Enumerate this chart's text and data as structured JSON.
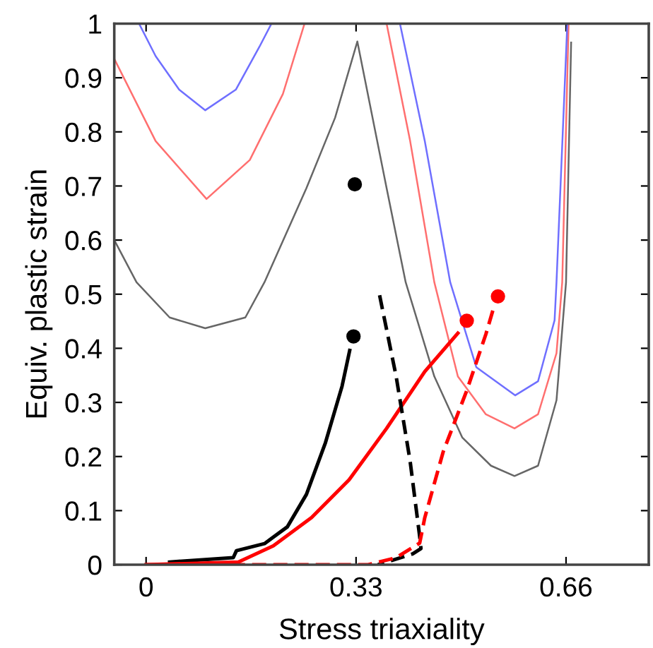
{
  "chart_data": {
    "type": "line",
    "xlabel": "Stress triaxiality",
    "ylabel": "Equiv. plastic strain",
    "xlim": [
      -0.05,
      0.79
    ],
    "ylim": [
      0,
      1
    ],
    "xticks": [
      0,
      0.33,
      0.66
    ],
    "yticks": [
      0,
      0.1,
      0.2,
      0.3,
      0.4,
      0.5,
      0.6,
      0.7,
      0.8,
      0.9,
      1
    ],
    "grid": false,
    "legend": false,
    "marker": "none",
    "series": [
      {
        "color": "#6f6fff",
        "x": [
          -0.011,
          0.015,
          0.052,
          0.093,
          0.141,
          0.178,
          0.197
        ],
        "values": [
          1,
          0.94,
          0.878,
          0.84,
          0.878,
          0.957,
          1
        ]
      },
      {
        "color": "#ff6f6f",
        "x": [
          -0.05,
          0.015,
          0.095,
          0.163,
          0.215,
          0.249
        ],
        "values": [
          0.935,
          0.783,
          0.676,
          0.748,
          0.87,
          1
        ]
      },
      {
        "color": "#666666",
        "x": [
          -0.05,
          -0.015,
          0.037,
          0.093,
          0.156,
          0.186,
          0.252,
          0.297,
          0.332,
          0.378,
          0.408,
          0.453,
          0.497,
          0.542,
          0.579,
          0.616,
          0.645,
          0.66,
          0.668
        ],
        "values": [
          0.6,
          0.522,
          0.457,
          0.437,
          0.457,
          0.522,
          0.696,
          0.826,
          0.967,
          0.696,
          0.522,
          0.348,
          0.235,
          0.183,
          0.164,
          0.183,
          0.304,
          0.522,
          0.965
        ]
      },
      {
        "color": "#ff6f6f",
        "x": [
          0.378,
          0.415,
          0.453,
          0.49,
          0.534,
          0.579,
          0.616,
          0.645,
          0.654,
          0.664
        ],
        "values": [
          1,
          0.783,
          0.522,
          0.348,
          0.278,
          0.252,
          0.278,
          0.391,
          0.522,
          1
        ]
      },
      {
        "color": "#6f6fff",
        "x": [
          0.399,
          0.438,
          0.478,
          0.519,
          0.58,
          0.616,
          0.642,
          0.645,
          0.662
        ],
        "values": [
          1,
          0.783,
          0.522,
          0.365,
          0.313,
          0.339,
          0.452,
          0.522,
          1
        ]
      },
      {
        "color": "#000000",
        "line_style": "solid",
        "x": [
          0.037,
          0.137,
          0.142,
          0.186,
          0.222,
          0.252,
          0.282,
          0.308,
          0.32
        ],
        "values": [
          0.005,
          0.013,
          0.026,
          0.039,
          0.07,
          0.13,
          0.226,
          0.33,
          0.396
        ]
      },
      {
        "color": "#ff0000",
        "line_style": "solid",
        "x": [
          0,
          0.145,
          0.2,
          0.26,
          0.319,
          0.378,
          0.438,
          0.49
        ],
        "values": [
          0,
          0.005,
          0.035,
          0.087,
          0.157,
          0.252,
          0.357,
          0.428
        ]
      },
      {
        "color": "#000000",
        "line_style": "dashed",
        "x": [
          0.367,
          0.393,
          0.415,
          0.43,
          0.432,
          0.419,
          0.364
        ],
        "values": [
          0.498,
          0.348,
          0.191,
          0.052,
          0.03,
          0.02,
          0
        ]
      },
      {
        "color": "#ff0000",
        "line_style": "dashed",
        "x": [
          0,
          0.349,
          0.393,
          0.43,
          0.438,
          0.467,
          0.504,
          0.534,
          0.547
        ],
        "values": [
          0,
          0,
          0.013,
          0.04,
          0.087,
          0.209,
          0.322,
          0.426,
          0.478
        ]
      },
      {
        "type": "scatter",
        "marker": "circle",
        "color": "#000000",
        "x": [
          0.326,
          0.328
        ],
        "values": [
          0.422,
          0.703
        ]
      },
      {
        "type": "scatter",
        "marker": "circle",
        "color": "#ff0000",
        "x": [
          0.504,
          0.553
        ],
        "values": [
          0.451,
          0.496
        ]
      }
    ]
  }
}
